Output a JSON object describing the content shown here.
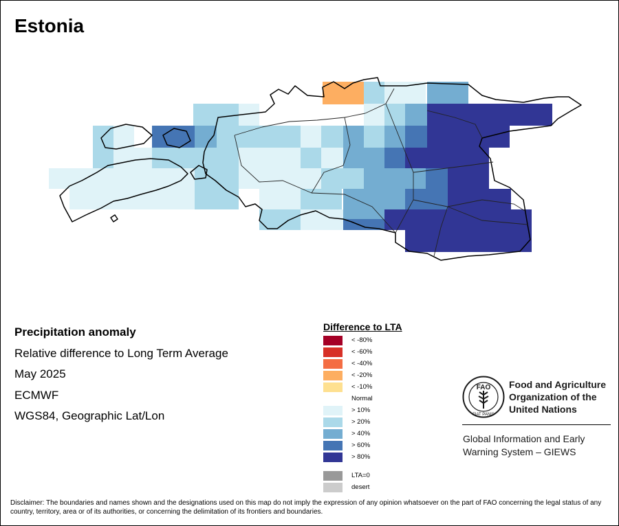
{
  "title": "Estonia",
  "info": {
    "heading": "Precipitation anomaly",
    "lines": [
      "Relative difference to Long Term Average",
      "May 2025",
      "ECMWF",
      "WGS84, Geographic Lat/Lon"
    ]
  },
  "legend": {
    "title": "Difference to LTA",
    "items": [
      {
        "label": "< -80%",
        "color": "#a50026"
      },
      {
        "label": "< -60%",
        "color": "#d73027"
      },
      {
        "label": "< -40%",
        "color": "#f46d43"
      },
      {
        "label": "< -20%",
        "color": "#fdae61"
      },
      {
        "label": "< -10%",
        "color": "#fee090"
      },
      {
        "label": "Normal",
        "color": "#ffffff"
      },
      {
        "label": "> 10%",
        "color": "#e0f3f8"
      },
      {
        "label": "> 20%",
        "color": "#abd9e9"
      },
      {
        "label": "> 40%",
        "color": "#74add1"
      },
      {
        "label": "> 60%",
        "color": "#4575b4"
      },
      {
        "label": "> 80%",
        "color": "#313695"
      }
    ],
    "extra": [
      {
        "label": "LTA=0",
        "color": "#999999"
      },
      {
        "label": "desert",
        "color": "#cccccc"
      }
    ]
  },
  "logo": {
    "org_lines": [
      "Food and Agriculture",
      "Organization of the",
      "United Nations"
    ],
    "seal_letters": "FAO",
    "seal_motto": "FIAT PANIS",
    "program_lines": [
      "Global Information and Early",
      "Warning System – GIEWS"
    ]
  },
  "disclaimer": "Disclaimer: The boundaries and names shown and the designations used on this map do not imply the expression of any opinion whatsoever on the part of FAO concerning the legal status of any country, territory, area or of its authorities, or concerning the delimitation of its frontiers and boundaries."
}
